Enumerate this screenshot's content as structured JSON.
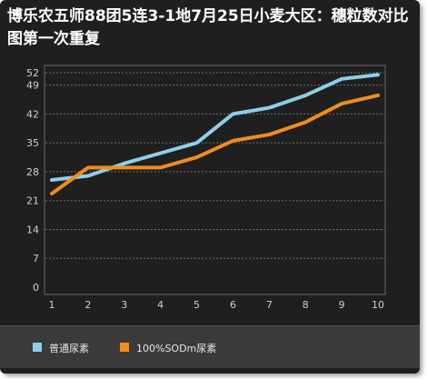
{
  "chart_data": {
    "type": "line",
    "title": "博乐农五师88团5连3-1地7月25日小麦大区：穗粒数对比图第一次重复",
    "x": [
      1,
      2,
      3,
      4,
      5,
      6,
      7,
      8,
      9,
      10
    ],
    "yticks": [
      0,
      7,
      14,
      21,
      28,
      35,
      42,
      49,
      52
    ],
    "ylim": [
      0,
      52
    ],
    "xlim": [
      1,
      10
    ],
    "grid": true,
    "legend_position": "bottom",
    "series": [
      {
        "name": "普通尿素",
        "color": "#8ecfe8",
        "values": [
          26,
          27,
          30,
          32.5,
          35,
          42,
          43.5,
          46.5,
          50.5,
          51.5
        ]
      },
      {
        "name": "100%SODm尿素",
        "color": "#f08c1e",
        "values": [
          22.7,
          29,
          29,
          29,
          31.5,
          35.5,
          37,
          40,
          44.5,
          46.5
        ]
      }
    ]
  }
}
